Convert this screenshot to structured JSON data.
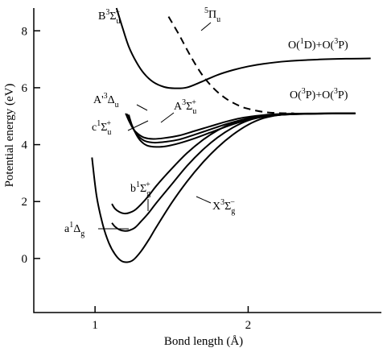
{
  "chart_data": {
    "type": "line",
    "title": "",
    "xlabel": "Bond length (Å)",
    "ylabel": "Potential energy (eV)",
    "xlim": [
      0.6,
      2.87
    ],
    "ylim": [
      -1.9,
      8.8
    ],
    "x_ticks": [
      1,
      2
    ],
    "y_ticks": [
      0,
      2,
      4,
      6,
      8
    ],
    "x_tick_labels": [
      "1",
      "2"
    ],
    "y_tick_labels": [
      "0",
      "2",
      "4",
      "6",
      "8"
    ],
    "grid": false,
    "legend": "none",
    "series": [
      {
        "id": "X3Sg",
        "style": "solid",
        "x": [
          0.98,
          1.01,
          1.05,
          1.09,
          1.13,
          1.17,
          1.21,
          1.25,
          1.3,
          1.35,
          1.4,
          1.5,
          1.6,
          1.7,
          1.8,
          1.9,
          2.0,
          2.1,
          2.2,
          2.3,
          2.4,
          2.55,
          2.7
        ],
        "y": [
          3.55,
          2.2,
          1.2,
          0.55,
          0.15,
          -0.08,
          -0.13,
          -0.05,
          0.25,
          0.65,
          1.1,
          1.95,
          2.7,
          3.35,
          3.9,
          4.35,
          4.7,
          4.93,
          5.04,
          5.07,
          5.08,
          5.09,
          5.1
        ]
      },
      {
        "id": "a1Dg",
        "style": "solid",
        "x": [
          1.11,
          1.13,
          1.16,
          1.19,
          1.22,
          1.26,
          1.3,
          1.35,
          1.4,
          1.5,
          1.6,
          1.7,
          1.8,
          1.9,
          2.0,
          2.1,
          2.2,
          2.3,
          2.45,
          2.6,
          2.7
        ],
        "y": [
          1.25,
          1.12,
          1.01,
          0.97,
          0.98,
          1.08,
          1.3,
          1.6,
          1.95,
          2.6,
          3.25,
          3.8,
          4.25,
          4.6,
          4.85,
          4.98,
          5.04,
          5.07,
          5.09,
          5.1,
          5.1
        ]
      },
      {
        "id": "b1Sg",
        "style": "solid",
        "x": [
          1.11,
          1.13,
          1.16,
          1.19,
          1.22,
          1.26,
          1.3,
          1.35,
          1.4,
          1.5,
          1.6,
          1.7,
          1.8,
          1.9,
          2.0,
          2.1,
          2.2,
          2.3,
          2.45,
          2.6,
          2.7
        ],
        "y": [
          1.92,
          1.75,
          1.63,
          1.58,
          1.6,
          1.7,
          1.9,
          2.2,
          2.55,
          3.15,
          3.7,
          4.15,
          4.5,
          4.76,
          4.93,
          5.02,
          5.06,
          5.08,
          5.09,
          5.1,
          5.1
        ]
      },
      {
        "id": "c1Su",
        "style": "solid",
        "x": [
          1.22,
          1.24,
          1.27,
          1.3,
          1.34,
          1.4,
          1.47,
          1.55,
          1.65,
          1.75,
          1.85,
          1.95,
          2.05,
          2.15,
          2.3,
          2.5,
          2.7
        ],
        "y": [
          5.05,
          4.7,
          4.35,
          4.12,
          3.97,
          3.92,
          3.95,
          4.05,
          4.22,
          4.42,
          4.62,
          4.8,
          4.93,
          5.02,
          5.07,
          5.09,
          5.1
        ]
      },
      {
        "id": "Ap3Du",
        "style": "solid",
        "x": [
          1.21,
          1.23,
          1.26,
          1.29,
          1.33,
          1.39,
          1.46,
          1.55,
          1.65,
          1.75,
          1.85,
          1.95,
          2.05,
          2.15,
          2.3,
          2.5,
          2.7
        ],
        "y": [
          5.08,
          4.78,
          4.46,
          4.26,
          4.12,
          4.07,
          4.1,
          4.18,
          4.35,
          4.53,
          4.71,
          4.86,
          4.97,
          5.04,
          5.08,
          5.09,
          5.1
        ]
      },
      {
        "id": "A3Su",
        "style": "solid",
        "x": [
          1.2,
          1.22,
          1.25,
          1.28,
          1.32,
          1.38,
          1.45,
          1.55,
          1.65,
          1.75,
          1.85,
          1.95,
          2.05,
          2.15,
          2.3,
          2.5,
          2.7
        ],
        "y": [
          5.1,
          4.85,
          4.55,
          4.38,
          4.25,
          4.2,
          4.23,
          4.32,
          4.48,
          4.64,
          4.8,
          4.93,
          5.01,
          5.06,
          5.09,
          5.1,
          5.1
        ]
      },
      {
        "id": "B3Su",
        "style": "solid",
        "x": [
          1.14,
          1.18,
          1.22,
          1.27,
          1.32,
          1.38,
          1.45,
          1.52,
          1.6,
          1.7,
          1.8,
          1.9,
          2.0,
          2.1,
          2.25,
          2.45,
          2.65,
          2.8
        ],
        "y": [
          8.8,
          8.1,
          7.45,
          6.9,
          6.5,
          6.2,
          6.03,
          5.98,
          6.01,
          6.22,
          6.45,
          6.62,
          6.75,
          6.84,
          6.93,
          6.99,
          7.02,
          7.03
        ]
      },
      {
        "id": "5Pu",
        "style": "dashed",
        "x": [
          1.48,
          1.55,
          1.62,
          1.7,
          1.78,
          1.86,
          1.94,
          2.0,
          2.1,
          2.2,
          2.3
        ],
        "y": [
          8.5,
          7.85,
          7.15,
          6.45,
          5.95,
          5.6,
          5.37,
          5.26,
          5.15,
          5.11,
          5.1
        ]
      }
    ],
    "labels": [
      {
        "id": "B3Su",
        "base": "B",
        "sup": "3",
        "main": "Σ",
        "sub": "u",
        "sup2": "−"
      },
      {
        "id": "5Pu",
        "base": "",
        "sup": "5",
        "main": "Π",
        "sub": "u",
        "sup2": ""
      },
      {
        "id": "O1D3P",
        "text_parts": [
          "O(",
          "1",
          "D)+O(",
          "3",
          "P)"
        ]
      },
      {
        "id": "O3P3P",
        "text_parts": [
          "O(",
          "3",
          "P)+O(",
          "3",
          "P)"
        ]
      },
      {
        "id": "Ap3Du",
        "base": "A'",
        "sup": "3",
        "main": "Δ",
        "sub": "u",
        "sup2": ""
      },
      {
        "id": "A3Su",
        "base": "A",
        "sup": "3",
        "main": "Σ",
        "sub": "u",
        "sup2": "+"
      },
      {
        "id": "c1Su",
        "base": "c",
        "sup": "1",
        "main": "Σ",
        "sub": "u",
        "sup2": "+"
      },
      {
        "id": "b1Sg",
        "base": "b",
        "sup": "1",
        "main": "Σ",
        "sub": "g",
        "sup2": "+"
      },
      {
        "id": "X3Sg",
        "base": "X",
        "sup": "3",
        "main": "Σ",
        "sub": "g",
        "sup2": "−"
      },
      {
        "id": "a1Dg",
        "base": "a",
        "sup": "1",
        "main": "Δ",
        "sub": "g",
        "sup2": ""
      }
    ]
  }
}
